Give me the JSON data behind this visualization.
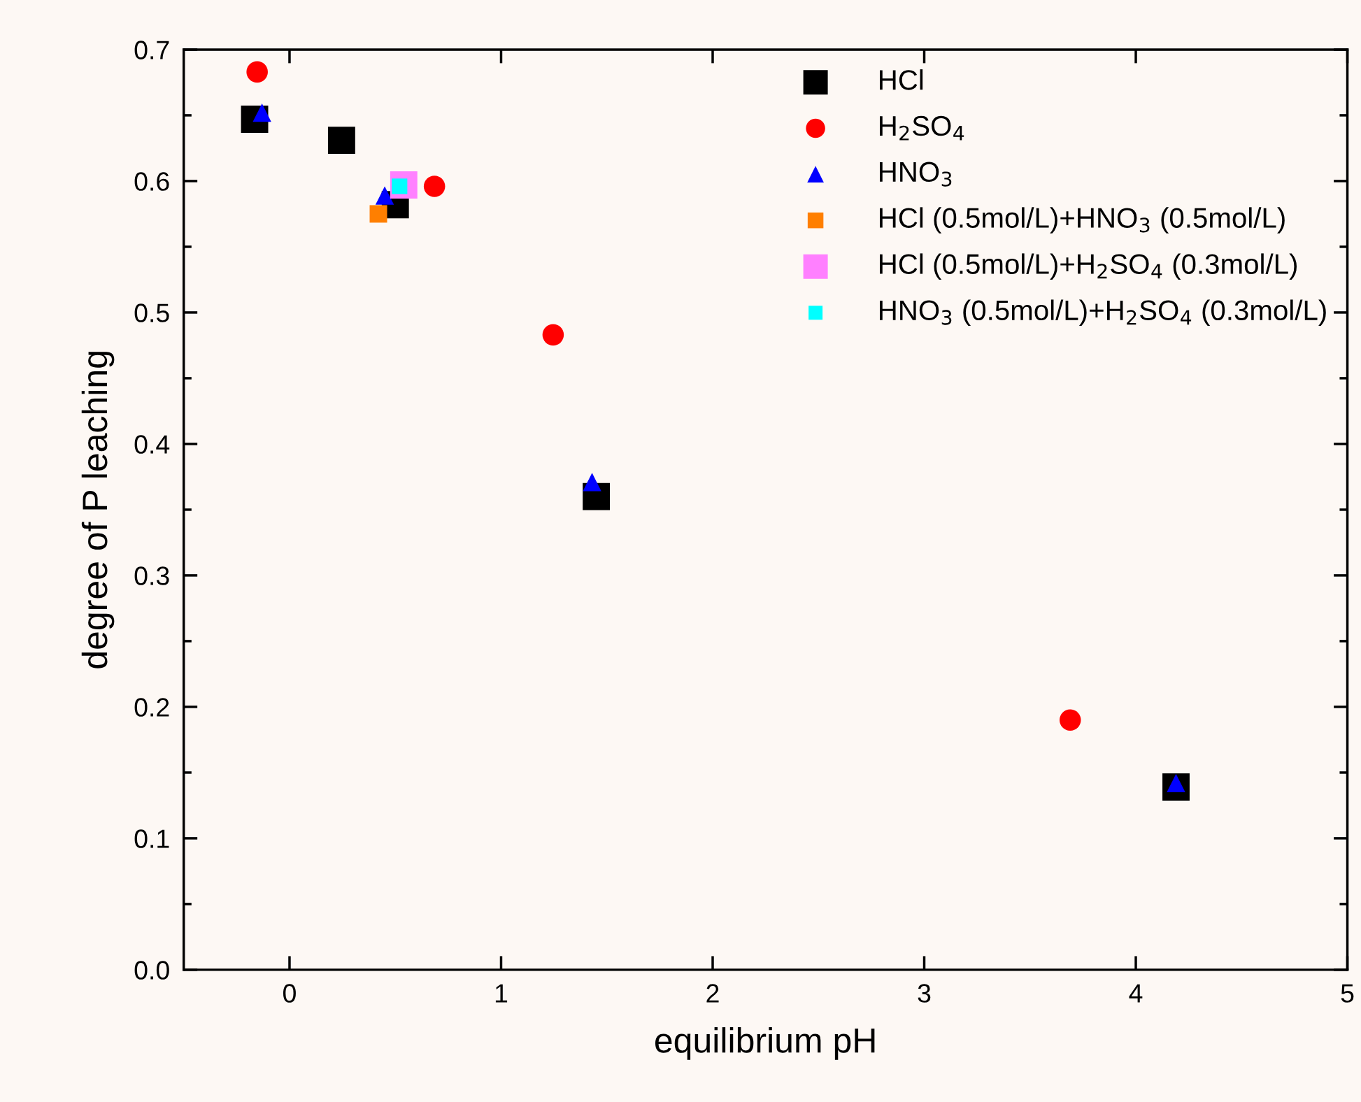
{
  "chart_data": {
    "type": "scatter",
    "xlabel": "equilibrium pH",
    "ylabel": "degree of P leaching",
    "xlim": [
      -0.5,
      5
    ],
    "xticks": [
      0,
      1,
      2,
      3,
      4,
      5
    ],
    "ylim": [
      0,
      0.7
    ],
    "yticks": [
      {
        "value": 0,
        "label": "0.0"
      },
      0.1,
      0.2,
      0.3,
      0.4,
      0.5,
      0.6,
      0.7
    ],
    "grid": false,
    "legend": "top right",
    "series": [
      {
        "name": "HCl",
        "color": "#000000",
        "marker": "square",
        "x": [
          -0.165,
          0.246,
          0.5,
          1.45,
          4.19
        ],
        "values": [
          0.647,
          0.631,
          0.582,
          0.36,
          0.139
        ]
      },
      {
        "name": "H$_{2}$SO$_{4}$",
        "color": "#ff0000",
        "marker": "circle",
        "x": [
          -0.153,
          0.685,
          1.246,
          3.69
        ],
        "values": [
          0.683,
          0.596,
          0.483,
          0.19
        ]
      },
      {
        "name": "HNO$_{3}$",
        "color": "#0000ff",
        "marker": "triangle",
        "x": [
          -0.13,
          0.45,
          1.43,
          4.19
        ],
        "values": [
          0.652,
          0.589,
          0.371,
          0.142
        ]
      },
      {
        "name": "HCl (0.5mol/L)+HNO$_{3}$ (0.5mol/L)",
        "color": "#ff7f00",
        "marker": "square",
        "x": [
          0.42
        ],
        "values": [
          0.575
        ]
      },
      {
        "name": "HCl (0.5mol/L)+H$_{2}$SO$_{4}$ (0.3mol/L)",
        "color": "#ff80ff",
        "marker": "square",
        "x": [
          0.54
        ],
        "values": [
          0.597
        ]
      },
      {
        "name": "HNO$_{3}$ (0.5mol/L)+H$_{2}$SO$_{4}$ (0.3mol/L)",
        "color": "#00ffff",
        "marker": "square",
        "x": [
          0.52
        ],
        "values": [
          0.596
        ]
      }
    ]
  }
}
